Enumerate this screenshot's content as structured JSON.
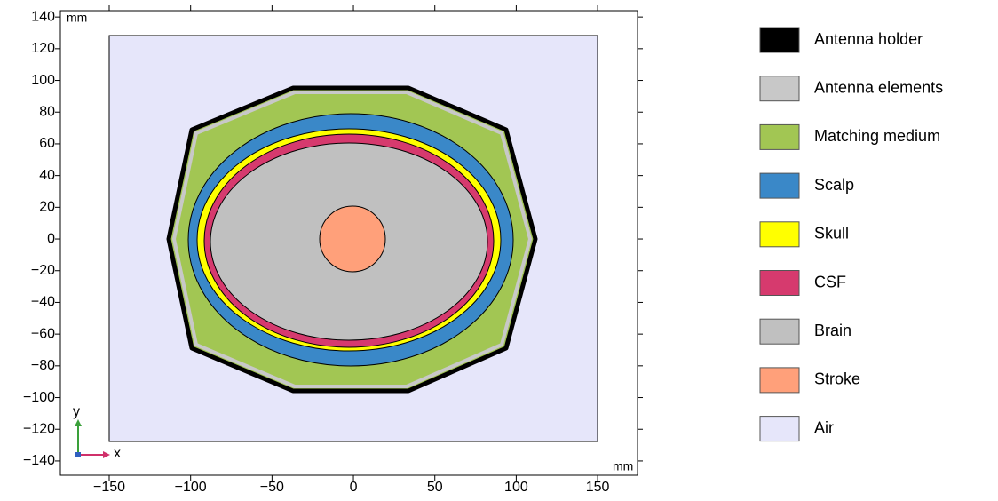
{
  "chart_data": {
    "type": "geometry",
    "x_unit": "mm",
    "y_unit": "mm",
    "xlim": [
      -180,
      174.5
    ],
    "ylim": [
      -149,
      144
    ],
    "xticks": [
      {
        "value": -150,
        "label": "−150"
      },
      {
        "value": -100,
        "label": "−100"
      },
      {
        "value": -50,
        "label": "−50"
      },
      0,
      50,
      100,
      150
    ],
    "yticks": [
      {
        "value": -140,
        "label": "−140"
      },
      {
        "value": -120,
        "label": "−120"
      },
      {
        "value": -100,
        "label": "−100"
      },
      {
        "value": -80,
        "label": "−80"
      },
      {
        "value": -60,
        "label": "−60"
      },
      {
        "value": -40,
        "label": "−40"
      },
      {
        "value": -20,
        "label": "−20"
      },
      0,
      20,
      40,
      60,
      80,
      100,
      120,
      140
    ],
    "axis_triad": {
      "x": "x",
      "y": "y"
    },
    "series": [
      {
        "name": "Antenna holder",
        "color": "#000000"
      },
      {
        "name": "Antenna elements",
        "color": "#c8c8c8"
      },
      {
        "name": "Matching medium",
        "color": "#a2c653"
      },
      {
        "name": "Scalp",
        "color": "#3a88c8"
      },
      {
        "name": "Skull",
        "color": "#ffff00"
      },
      {
        "name": "CSF",
        "color": "#d63a6e"
      },
      {
        "name": "Brain",
        "color": "#c0c0c0"
      },
      {
        "name": "Stroke",
        "color": "#ffa07a"
      },
      {
        "name": "Air",
        "color": "#e6e6fa"
      }
    ]
  }
}
